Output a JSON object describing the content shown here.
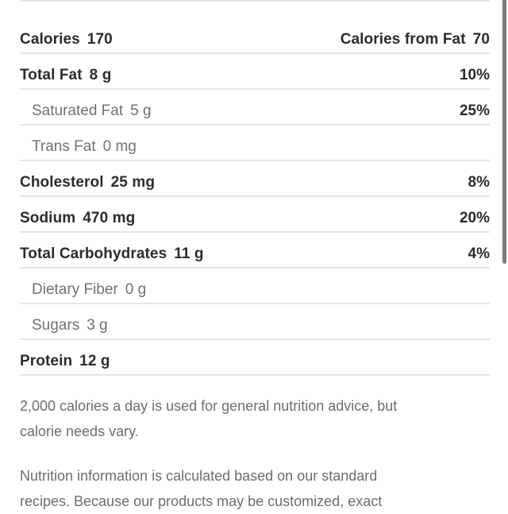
{
  "colors": {
    "background": "#ffffff",
    "divider": "#dcebe4",
    "text_dark": "#2e2b28",
    "text_gray": "#73716e",
    "scrollbar_thumb": "#7b7b7b"
  },
  "nutrition_panel": {
    "calories_row": {
      "left_name": "Calories",
      "left_value": "170",
      "right_name": "Calories from Fat",
      "right_value": "70"
    },
    "rows": [
      {
        "name": "Total Fat",
        "amount": "8 g",
        "daily_value": "10%"
      },
      {
        "name": "Saturated Fat",
        "amount": "5 g",
        "daily_value": "25%"
      },
      {
        "name": "Trans Fat",
        "amount": "0 mg",
        "daily_value": ""
      },
      {
        "name": "Cholesterol",
        "amount": "25 mg",
        "daily_value": "8%"
      },
      {
        "name": "Sodium",
        "amount": "470 mg",
        "daily_value": "20%"
      },
      {
        "name": "Total Carbohydrates",
        "amount": "11 g",
        "daily_value": "4%"
      },
      {
        "name": "Dietary Fiber",
        "amount": "0 g",
        "daily_value": ""
      },
      {
        "name": "Sugars",
        "amount": "3 g",
        "daily_value": ""
      },
      {
        "name": "Protein",
        "amount": "12 g",
        "daily_value": ""
      }
    ]
  },
  "disclaimers": {
    "calorie_advice_lines": {
      "line1": "2,000 calories a day is used for general nutrition advice, but",
      "line2": "calorie needs vary."
    },
    "nutrition_info_lines": {
      "line1": "Nutrition information is calculated based on our standard",
      "line2": "recipes. Because our products may be customized, exact"
    }
  }
}
